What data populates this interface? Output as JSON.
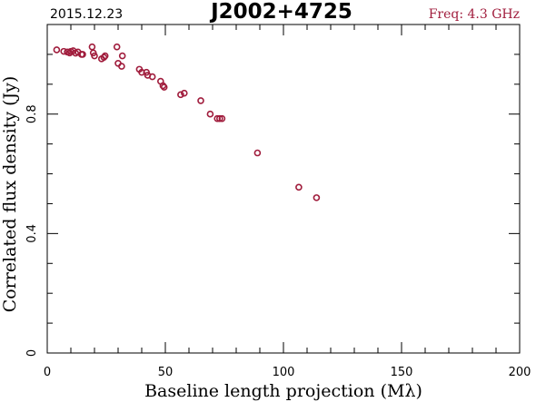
{
  "header": {
    "date": "2015.12.23",
    "source": "J2002+4725",
    "frequency": "Freq: 4.3 GHz"
  },
  "colors": {
    "points": "#a01c3c",
    "frequency_text": "#a01c3c",
    "axes": "#000000"
  },
  "chart_data": {
    "type": "scatter",
    "title": "J2002+4725",
    "xlabel": "Baseline length projection (Mλ)",
    "ylabel": "Correlated flux density (Jy)",
    "xlim": [
      0,
      200
    ],
    "ylim": [
      0,
      1.1
    ],
    "x_ticks": [
      0,
      50,
      100,
      150,
      200
    ],
    "x_tick_labels": [
      "0",
      "50",
      "100",
      "150",
      "200"
    ],
    "y_ticks": [
      0,
      0.4,
      0.8
    ],
    "y_tick_labels": [
      "0",
      "0.4",
      "0.8"
    ],
    "grid": false,
    "marker": "open-circle",
    "series": [
      {
        "points": [
          [
            4,
            1.015
          ],
          [
            7,
            1.01
          ],
          [
            8.5,
            1.008
          ],
          [
            9.5,
            1.005
          ],
          [
            10,
            1.01
          ],
          [
            11,
            1.012
          ],
          [
            12,
            1.004
          ],
          [
            13,
            1.008
          ],
          [
            14.5,
            1.0
          ],
          [
            15,
            1.0
          ],
          [
            19,
            1.025
          ],
          [
            19.5,
            1.005
          ],
          [
            20,
            0.995
          ],
          [
            23,
            0.985
          ],
          [
            24,
            0.99
          ],
          [
            24.5,
            0.995
          ],
          [
            29.5,
            1.025
          ],
          [
            30,
            0.97
          ],
          [
            31.5,
            0.96
          ],
          [
            31.8,
            0.995
          ],
          [
            39,
            0.95
          ],
          [
            40,
            0.94
          ],
          [
            42,
            0.94
          ],
          [
            42.5,
            0.93
          ],
          [
            44.5,
            0.925
          ],
          [
            48,
            0.91
          ],
          [
            49,
            0.895
          ],
          [
            49.5,
            0.89
          ],
          [
            56.5,
            0.865
          ],
          [
            58,
            0.87
          ],
          [
            65,
            0.845
          ],
          [
            69,
            0.8
          ],
          [
            72,
            0.785
          ],
          [
            73,
            0.785
          ],
          [
            74,
            0.785
          ],
          [
            89,
            0.67
          ],
          [
            106.5,
            0.555
          ],
          [
            114,
            0.52
          ]
        ]
      }
    ]
  }
}
